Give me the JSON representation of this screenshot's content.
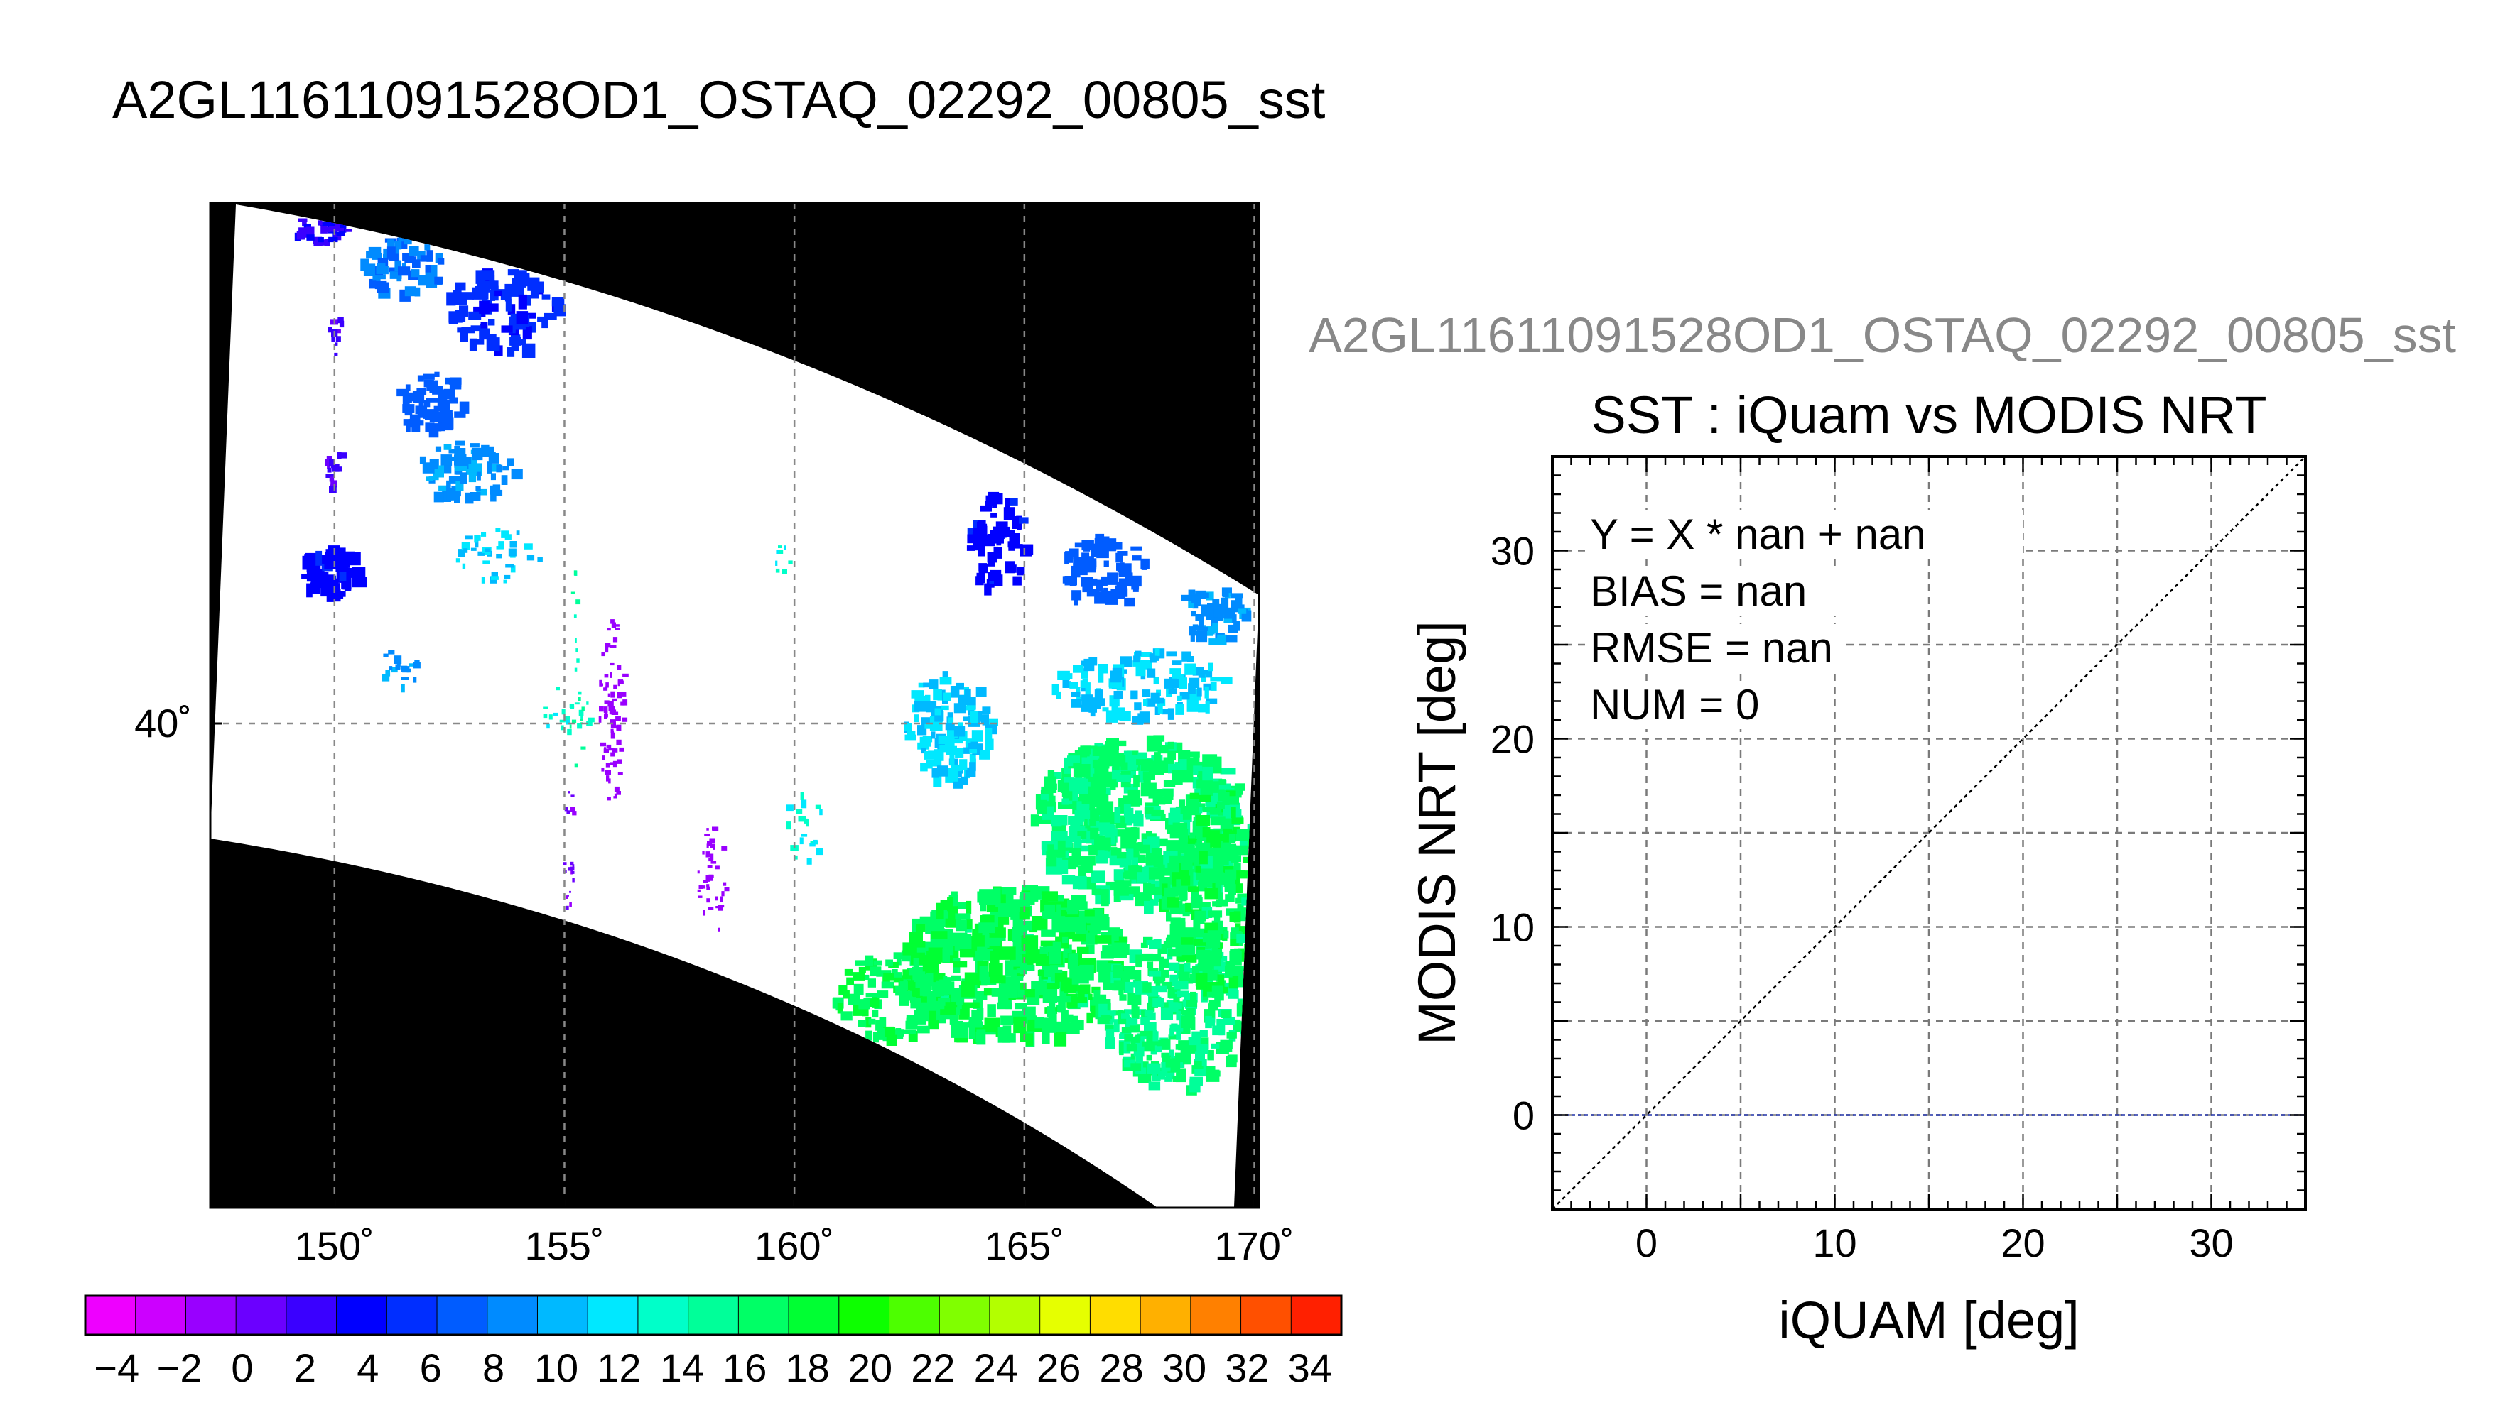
{
  "main_title": "A2GL11611091528OD1_OSTAQ_02292_00805_sst",
  "side_title": "A2GL11611091528OD1_OSTAQ_02292_00805_sst",
  "colors": {
    "background": "#ffffff",
    "map_fill": "#000000",
    "swath": "#ffffff",
    "grid": "#888888",
    "zero_line": "#2233aa",
    "one_to_one": "#000000"
  },
  "chart_data": [
    {
      "type": "heatmap",
      "title": "",
      "x_tick_labels": [
        "150˚",
        "155˚",
        "160˚",
        "165˚",
        "170˚"
      ],
      "y_tick_labels": [
        "40˚"
      ],
      "x_ticks": [
        150,
        155,
        160,
        165,
        170
      ],
      "y_ticks": [
        40
      ],
      "xlim": [
        147.3,
        170.1
      ],
      "grid": true,
      "colorbar": {
        "bins": [
          -5,
          -4,
          -3,
          -2,
          -1,
          0,
          1,
          2,
          3,
          4,
          5,
          6,
          7,
          8,
          9,
          10,
          11,
          12,
          13,
          14,
          15,
          16,
          17,
          18,
          19,
          20,
          21,
          22,
          23,
          24,
          25,
          26,
          27,
          28,
          29,
          30,
          31,
          32,
          33,
          34,
          35
        ],
        "tick_values": [
          -4,
          -2,
          0,
          2,
          4,
          6,
          8,
          10,
          12,
          14,
          16,
          18,
          20,
          22,
          24,
          26,
          28,
          30,
          32,
          34
        ],
        "tick_labels": [
          "−4",
          "−2",
          "0",
          "2",
          "4",
          "6",
          "8",
          "10",
          "12",
          "14",
          "16",
          "18",
          "20",
          "22",
          "24",
          "26",
          "28",
          "30",
          "32",
          "34"
        ],
        "colors": [
          "#ee00ff",
          "#cc00ff",
          "#9900ff",
          "#6b00ff",
          "#3a00ff",
          "#0000ff",
          "#002eff",
          "#005cff",
          "#008bff",
          "#00b9ff",
          "#00e8ff",
          "#00ffc9",
          "#00ff99",
          "#00ff66",
          "#00ff33",
          "#0dff00",
          "#4dff00",
          "#80ff00",
          "#b3ff00",
          "#e6ff00",
          "#ffdd00",
          "#ffb000",
          "#ff8000",
          "#ff5000",
          "#ff2000"
        ]
      }
    },
    {
      "type": "scatter",
      "title": "SST : iQuam vs MODIS NRT",
      "xlabel": "iQUAM [deg]",
      "ylabel": "MODIS NRT [deg]",
      "xlim": [
        -5,
        35
      ],
      "ylim": [
        -5,
        35
      ],
      "x_ticks": [
        0,
        10,
        20,
        30
      ],
      "y_ticks": [
        0,
        10,
        20,
        30
      ],
      "x_tick_labels": [
        "0",
        "10",
        "20",
        "30"
      ],
      "y_tick_labels": [
        "0",
        "10",
        "20",
        "30"
      ],
      "grid_step": 5,
      "grid": true,
      "points": [],
      "reference_lines": [
        {
          "kind": "one-to-one",
          "from": [
            -5,
            -5
          ],
          "to": [
            35,
            35
          ]
        },
        {
          "kind": "horizontal",
          "y": 0
        }
      ],
      "annotations": [
        "Y = X * nan + nan",
        "BIAS = nan",
        "RMSE = nan",
        "NUM = 0"
      ]
    }
  ]
}
